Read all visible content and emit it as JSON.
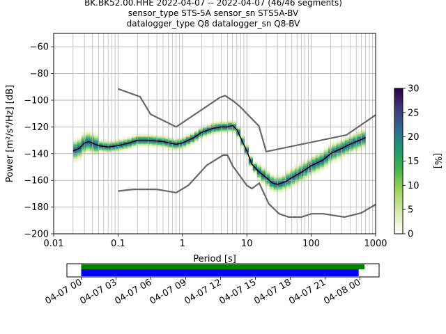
{
  "title": {
    "line1": "BK.BK52.00.HHE   2022-04-07 -- 2022-04-07  (46/46 segments)",
    "line2": "sensor_type STS-5A sensor_sn STS5A-BV",
    "line3": "datalogger_type Q8 datalogger_sn Q8-BV"
  },
  "chart_data": [
    {
      "type": "heatmap",
      "xlabel": "Period [s]",
      "ylabel": "Power [m²/s⁴/Hz] [dB]",
      "xscale": "log",
      "xlim": [
        0.01,
        1000
      ],
      "ylim": [
        -200,
        -50
      ],
      "xticks": [
        0.01,
        0.1,
        1,
        10,
        100,
        1000
      ],
      "xtick_labels": [
        "0.01",
        "0.1",
        "1",
        "10",
        "100",
        "1000"
      ],
      "yticks": [
        -200,
        -180,
        -160,
        -140,
        -120,
        -100,
        -80,
        -60
      ],
      "grid": true,
      "colorbar": {
        "label": "[%]",
        "min": 0,
        "max": 30,
        "ticks": [
          0,
          5,
          10,
          15,
          20,
          25,
          30
        ],
        "colors": [
          "#ffffff",
          "#d9ecb2",
          "#9ed35b",
          "#3fb24a",
          "#1f9a72",
          "#2e6b8f",
          "#3b3977",
          "#2d004b"
        ]
      },
      "mode_line": {
        "color": "#000000",
        "x": [
          0.02,
          0.025,
          0.03,
          0.035,
          0.05,
          0.07,
          0.1,
          0.15,
          0.2,
          0.3,
          0.5,
          0.8,
          1,
          1.5,
          2,
          3,
          4,
          5,
          6,
          7,
          8,
          10,
          12,
          15,
          20,
          25,
          30,
          40,
          50,
          70,
          100,
          150,
          200,
          300,
          400,
          500,
          700
        ],
        "y": [
          -138,
          -136,
          -132,
          -131,
          -134,
          -135,
          -134,
          -132,
          -130,
          -130,
          -131,
          -133,
          -132,
          -128,
          -124,
          -121,
          -120,
          -120,
          -119,
          -122,
          -128,
          -138,
          -148,
          -153,
          -158,
          -162,
          -163,
          -161,
          -158,
          -154,
          -149,
          -145,
          -140,
          -136,
          -133,
          -131,
          -128
        ]
      },
      "noise_models": {
        "color": "#666666",
        "high": {
          "x": [
            0.1,
            0.22,
            0.32,
            0.8,
            3.8,
            4.6,
            6.3,
            7.9,
            15.4,
            20,
            354.8,
            1000
          ],
          "y": [
            -91.5,
            -97.4,
            -110.5,
            -120,
            -98,
            -96.5,
            -101,
            -105,
            -119.3,
            -138.5,
            -126,
            -111
          ]
        },
        "low": {
          "x": [
            0.1,
            0.17,
            0.4,
            0.8,
            1.24,
            2.4,
            4.3,
            5,
            6,
            10,
            12,
            15.6,
            21.9,
            31.6,
            45,
            70,
            101,
            154,
            328,
            600,
            1000
          ],
          "y": [
            -168,
            -166.7,
            -166.7,
            -169.2,
            -163.7,
            -148.6,
            -141.1,
            -141.1,
            -149,
            -163.8,
            -166.2,
            -162.1,
            -177.5,
            -185,
            -187.5,
            -187.5,
            -185,
            -185,
            -187.5,
            -184.4,
            -178
          ]
        }
      }
    },
    {
      "type": "timeline",
      "xtick_labels": [
        "04-07 00",
        "04-07 03",
        "04-07 06",
        "04-07 09",
        "04-07 12",
        "04-07 15",
        "04-07 18",
        "04-07 21",
        "04-08 00"
      ],
      "x_start": "2022-04-07 00:00",
      "x_end": "2022-04-08 00:00",
      "bars": [
        {
          "color": "#008000",
          "start_hour": 0,
          "end_hour": 24.4
        },
        {
          "color": "#0000ff",
          "start_hour": 0,
          "end_hour": 23.9
        }
      ]
    }
  ]
}
